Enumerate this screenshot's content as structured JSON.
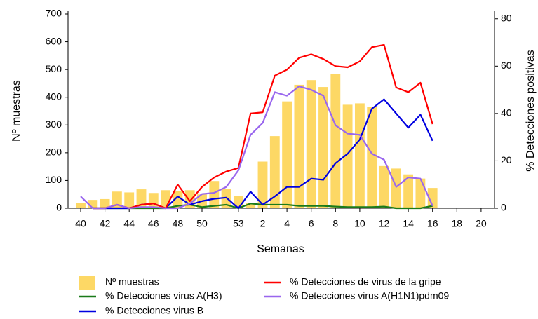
{
  "chart_data": {
    "type": "bar-line",
    "x_label": "Semanas",
    "y_label": "Nº muestras",
    "y2_label": "% Detecciones positivas",
    "categories": [
      "40",
      null,
      "42",
      null,
      "44",
      null,
      "46",
      null,
      "48",
      null,
      "50",
      null,
      null,
      "53",
      null,
      "2",
      null,
      "4",
      null,
      "6",
      null,
      "8",
      null,
      "10",
      null,
      "12",
      null,
      "14",
      null,
      "16",
      null,
      "18",
      null,
      "20"
    ],
    "ylim": [
      0,
      700
    ],
    "yticks": [
      0,
      100,
      200,
      300,
      400,
      500,
      600,
      700
    ],
    "y2lim": [
      0,
      82
    ],
    "y2ticks": [
      0,
      20,
      40,
      60,
      80
    ],
    "series": [
      {
        "name": "Nº muestras",
        "type": "bar",
        "color": "#fdd865",
        "values": [
          20,
          30,
          33,
          60,
          57,
          68,
          55,
          65,
          62,
          65,
          50,
          98,
          70,
          45,
          20,
          168,
          260,
          385,
          445,
          462,
          437,
          483,
          373,
          378,
          365,
          152,
          143,
          122,
          107,
          73,
          null,
          null,
          null,
          null
        ]
      },
      {
        "name": "% Detecciones virus A(H3)",
        "type": "line",
        "axis": "y2",
        "color": "#1a7a1a",
        "values": [
          null,
          0,
          0,
          0,
          0,
          0,
          0,
          0,
          1,
          1.5,
          0.5,
          1,
          1.5,
          0,
          2,
          1.5,
          1.5,
          1.5,
          1,
          1,
          1,
          0.7,
          0.5,
          0.5,
          0.5,
          0.7,
          0,
          0,
          0,
          1,
          null,
          null,
          null,
          null
        ]
      },
      {
        "name": "% Detecciones virus B",
        "type": "line",
        "axis": "y2",
        "color": "#0000e0",
        "values": [
          null,
          0,
          0,
          0,
          0,
          1.5,
          2,
          0,
          5,
          1.5,
          3,
          4,
          4.5,
          0,
          7,
          1.5,
          5,
          9,
          9,
          12.5,
          12,
          19,
          23,
          29,
          42,
          46,
          40,
          34,
          39.5,
          28.5,
          null,
          null,
          null,
          null
        ]
      },
      {
        "name": "% Detecciones de virus de la gripe",
        "type": "line",
        "axis": "y2",
        "color": "#ff0000",
        "values": [
          null,
          0,
          0,
          1.5,
          0,
          1.5,
          2,
          0,
          10,
          3,
          9,
          13,
          15.5,
          17,
          40,
          40.5,
          56,
          58.5,
          63.5,
          65,
          63,
          60,
          59.5,
          62,
          68,
          69,
          51,
          49,
          53,
          35.5,
          null,
          null,
          null,
          null
        ]
      },
      {
        "name": "% Detecciones virus A(H1N1)pdm09",
        "type": "line",
        "axis": "y2",
        "color": "#9966ee",
        "values": [
          5,
          0,
          0,
          1.5,
          0,
          0.5,
          0.5,
          0,
          0,
          2,
          6,
          6.5,
          9,
          16,
          31,
          36,
          49,
          47.5,
          51.5,
          50,
          47.5,
          35,
          31.5,
          31,
          23,
          20.5,
          9,
          13,
          12.5,
          1,
          null,
          null,
          null,
          null
        ]
      }
    ]
  }
}
